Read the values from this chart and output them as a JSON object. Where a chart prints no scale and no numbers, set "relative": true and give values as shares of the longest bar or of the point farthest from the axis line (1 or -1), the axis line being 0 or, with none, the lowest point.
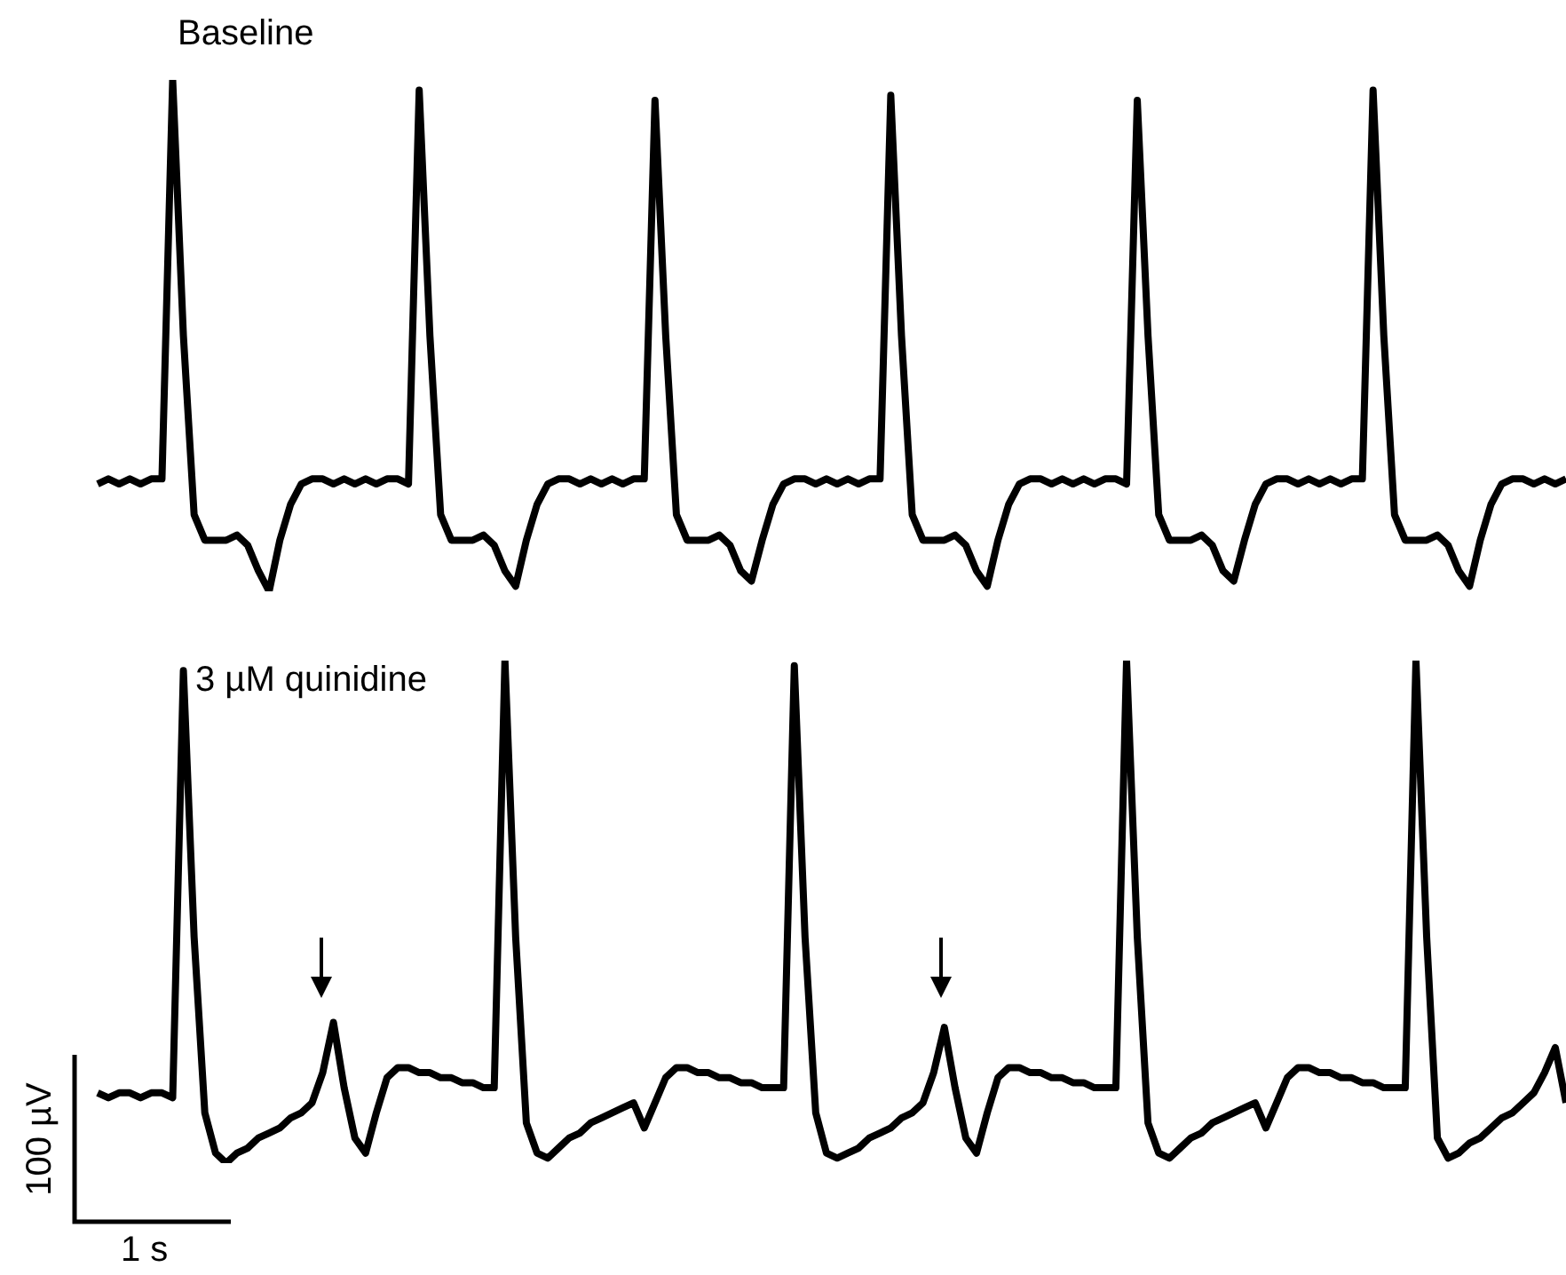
{
  "chart_data": [
    {
      "type": "line",
      "title": "Baseline",
      "relative": true,
      "color": "#000000",
      "categories": [
        null,
        null,
        null,
        null,
        null,
        null,
        null,
        null,
        null,
        null,
        null,
        null,
        null,
        null,
        null,
        null,
        null,
        null,
        null,
        null,
        null,
        null,
        null,
        null,
        null,
        null,
        null,
        null,
        null,
        null,
        null,
        null,
        null,
        null,
        null,
        null,
        null,
        null,
        null,
        null,
        null,
        null,
        null,
        null,
        null,
        null,
        null,
        null,
        null,
        null,
        null,
        null,
        null,
        null,
        null,
        null,
        null,
        null,
        null,
        null,
        null,
        null,
        null,
        null,
        null,
        null,
        null,
        null,
        null,
        null,
        null,
        null,
        null,
        null,
        null,
        null,
        null,
        null,
        null,
        null,
        null,
        null,
        null,
        null,
        null,
        null,
        null,
        null,
        null,
        null,
        null,
        null,
        null,
        null,
        null,
        null,
        null,
        null,
        null,
        null,
        null,
        null,
        null,
        null,
        null,
        null,
        null,
        null,
        null,
        null,
        null,
        null,
        null,
        null,
        null,
        null,
        null,
        null,
        null,
        null,
        null,
        null,
        null,
        null,
        null,
        null,
        null,
        null,
        null,
        null,
        null,
        null,
        null,
        null,
        null,
        null,
        null,
        null
      ],
      "values": [
        0.21,
        0.22,
        0.21,
        0.22,
        0.21,
        0.22,
        0.22,
        1.0,
        0.5,
        0.15,
        0.1,
        0.1,
        0.1,
        0.11,
        0.09,
        0.04,
        0,
        0.1,
        0.17,
        0.21,
        0.22,
        0.22,
        0.21,
        0.22,
        0.21,
        0.22,
        0.21,
        0.22,
        0.22,
        0.21,
        0.98,
        0.5,
        0.15,
        0.1,
        0.1,
        0.1,
        0.11,
        0.09,
        0.04,
        0.01,
        0.1,
        0.17,
        0.21,
        0.22,
        0.22,
        0.21,
        0.22,
        0.21,
        0.22,
        0.21,
        0.22,
        0.22,
        0.96,
        0.5,
        0.15,
        0.1,
        0.1,
        0.1,
        0.11,
        0.09,
        0.04,
        0.02,
        0.1,
        0.17,
        0.21,
        0.22,
        0.22,
        0.21,
        0.22,
        0.21,
        0.22,
        0.21,
        0.22,
        0.22,
        0.97,
        0.5,
        0.15,
        0.1,
        0.1,
        0.1,
        0.11,
        0.09,
        0.04,
        0.01,
        0.1,
        0.17,
        0.21,
        0.22,
        0.22,
        0.21,
        0.22,
        0.21,
        0.22,
        0.21,
        0.22,
        0.22,
        0.21,
        0.96,
        0.5,
        0.15,
        0.1,
        0.1,
        0.1,
        0.11,
        0.09,
        0.04,
        0.02,
        0.1,
        0.17,
        0.21,
        0.22,
        0.22,
        0.21,
        0.22,
        0.21,
        0.22,
        0.21,
        0.22,
        0.22,
        0.98,
        0.5,
        0.15,
        0.1,
        0.1,
        0.1,
        0.11,
        0.09,
        0.04,
        0.01,
        0.1,
        0.17,
        0.21,
        0.22,
        0.22,
        0.21,
        0.22,
        0.21,
        0.22
      ]
    },
    {
      "type": "line",
      "title": "3 µM quinidine",
      "relative": true,
      "color": "#000000",
      "annotations": [
        "100 µV",
        "1 s"
      ],
      "categories": [
        null,
        null,
        null,
        null,
        null,
        null,
        null,
        null,
        null,
        null,
        null,
        null,
        null,
        null,
        null,
        null,
        null,
        null,
        null,
        null,
        null,
        null,
        null,
        null,
        null,
        null,
        null,
        null,
        null,
        null,
        null,
        null,
        null,
        null,
        null,
        null,
        null,
        null,
        null,
        null,
        null,
        null,
        null,
        null,
        null,
        null,
        null,
        null,
        null,
        null,
        null,
        null,
        null,
        null,
        null,
        null,
        null,
        null,
        null,
        null,
        null,
        null,
        null,
        null,
        null,
        null,
        null,
        null,
        null,
        null,
        null,
        null,
        null,
        null,
        null,
        null,
        null,
        null,
        null,
        null,
        null,
        null,
        null,
        null,
        null,
        null,
        null,
        null,
        null,
        null,
        null,
        null,
        null,
        null,
        null,
        null,
        null,
        null,
        null,
        null,
        null,
        null,
        null,
        null,
        null,
        null,
        null,
        null,
        null,
        null,
        null,
        null,
        null,
        null,
        null,
        null,
        null,
        null,
        null,
        null,
        null,
        null,
        null,
        null,
        null,
        null,
        null,
        null,
        null,
        null,
        null,
        null,
        null,
        null,
        null,
        null,
        null,
        null
      ],
      "values": [
        0.14,
        0.13,
        0.14,
        0.14,
        0.13,
        0.14,
        0.14,
        0.13,
        0.98,
        0.45,
        0.1,
        0.02,
        0,
        0.02,
        0.03,
        0.05,
        0.06,
        0.07,
        0.09,
        0.1,
        0.12,
        0.18,
        0.28,
        0.15,
        0.05,
        0.02,
        0.1,
        0.17,
        0.19,
        0.19,
        0.18,
        0.18,
        0.17,
        0.17,
        0.16,
        0.16,
        0.15,
        0.15,
        1.0,
        0.45,
        0.08,
        0.02,
        0.01,
        0.03,
        0.05,
        0.06,
        0.08,
        0.09,
        0.1,
        0.11,
        0.12,
        0.07,
        0.12,
        0.17,
        0.19,
        0.19,
        0.18,
        0.18,
        0.17,
        0.17,
        0.16,
        0.16,
        0.15,
        0.15,
        0.15,
        0.99,
        0.45,
        0.1,
        0.02,
        0.01,
        0.02,
        0.03,
        0.05,
        0.06,
        0.07,
        0.09,
        0.1,
        0.12,
        0.18,
        0.27,
        0.15,
        0.05,
        0.02,
        0.1,
        0.17,
        0.19,
        0.19,
        0.18,
        0.18,
        0.17,
        0.17,
        0.16,
        0.16,
        0.15,
        0.15,
        0.15,
        1.0,
        0.45,
        0.08,
        0.02,
        0.01,
        0.03,
        0.05,
        0.06,
        0.08,
        0.09,
        0.1,
        0.11,
        0.12,
        0.07,
        0.12,
        0.17,
        0.19,
        0.19,
        0.18,
        0.18,
        0.17,
        0.17,
        0.16,
        0.16,
        0.15,
        0.15,
        0.15,
        1.0,
        0.45,
        0.05,
        0.01,
        0.02,
        0.04,
        0.05,
        0.07,
        0.09,
        0.1,
        0.12,
        0.14,
        0.18,
        0.23,
        0.12
      ]
    }
  ]
}
